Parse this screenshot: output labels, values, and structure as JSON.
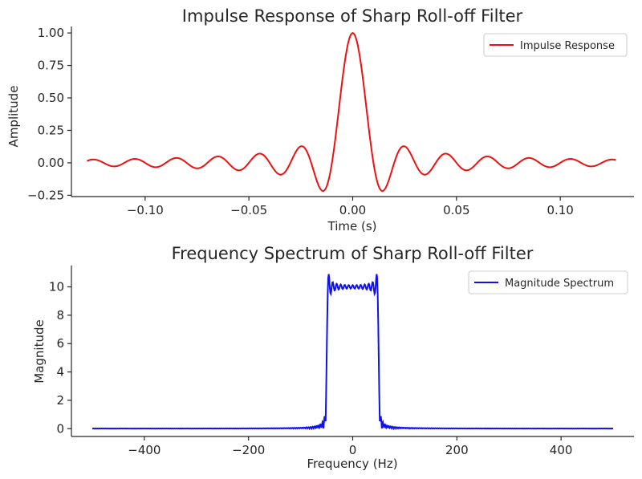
{
  "chart_data": [
    {
      "type": "line",
      "title": "Impulse Response of Sharp Roll-off Filter",
      "xlabel": "Time (s)",
      "ylabel": "Amplitude",
      "xlim": [
        -0.1355,
        0.1355
      ],
      "ylim": [
        -0.26,
        1.05
      ],
      "xticks": [
        -0.1,
        -0.05,
        0.0,
        0.05,
        0.1
      ],
      "xtick_labels": [
        "−0.10",
        "−0.05",
        "0.00",
        "0.05",
        "0.10"
      ],
      "yticks": [
        -0.25,
        0.0,
        0.25,
        0.5,
        0.75,
        1.0
      ],
      "ytick_labels": [
        "−0.25",
        "0.00",
        "0.25",
        "0.50",
        "0.75",
        "1.00"
      ],
      "grid": false,
      "legend_position": "top-right",
      "series": [
        {
          "name": "Impulse Response",
          "color": "#ee1111",
          "function": "sinc_lowpass",
          "cutoff_hz": 50,
          "t_range": [
            -0.128,
            0.127
          ],
          "sample_rate_hz": 1000
        }
      ]
    },
    {
      "type": "line",
      "title": "Frequency Spectrum of Sharp Roll-off Filter",
      "xlabel": "Frequency (Hz)",
      "ylabel": "Magnitude",
      "xlim": [
        -540,
        540
      ],
      "ylim": [
        -0.55,
        11.5
      ],
      "xticks": [
        -400,
        -200,
        0,
        200,
        400
      ],
      "xtick_labels": [
        "−400",
        "−200",
        "0",
        "200",
        "400"
      ],
      "yticks": [
        0,
        2,
        4,
        6,
        8,
        10
      ],
      "ytick_labels": [
        "0",
        "2",
        "4",
        "6",
        "8",
        "10"
      ],
      "grid": false,
      "legend_position": "top-right",
      "series": [
        {
          "name": "Magnitude Spectrum",
          "color": "#1111ee",
          "function": "dft_magnitude_of_impulse_response",
          "f_range": [
            -500,
            500
          ],
          "passband_hz": [
            -50,
            50
          ],
          "passband_level": 10.0,
          "peak_level": 10.9
        }
      ]
    }
  ]
}
